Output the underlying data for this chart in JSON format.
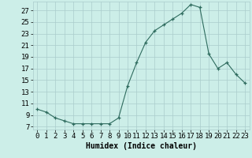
{
  "x": [
    0,
    1,
    2,
    3,
    4,
    5,
    6,
    7,
    8,
    9,
    10,
    11,
    12,
    13,
    14,
    15,
    16,
    17,
    18,
    19,
    20,
    21,
    22,
    23
  ],
  "y": [
    10,
    9.5,
    8.5,
    8,
    7.5,
    7.5,
    7.5,
    7.5,
    7.5,
    8.5,
    14,
    18,
    21.5,
    23.5,
    24.5,
    25.5,
    26.5,
    28,
    27.5,
    19.5,
    17,
    18,
    16,
    14.5
  ],
  "xlabel": "Humidex (Indice chaleur)",
  "xlim": [
    -0.5,
    23.5
  ],
  "ylim": [
    6.5,
    28.5
  ],
  "yticks": [
    7,
    9,
    11,
    13,
    15,
    17,
    19,
    21,
    23,
    25,
    27
  ],
  "xticks": [
    0,
    1,
    2,
    3,
    4,
    5,
    6,
    7,
    8,
    9,
    10,
    11,
    12,
    13,
    14,
    15,
    16,
    17,
    18,
    19,
    20,
    21,
    22,
    23
  ],
  "line_color": "#2e6b5e",
  "bg_color": "#cceee8",
  "grid_color": "#aacccc",
  "xlabel_fontsize": 7,
  "tick_fontsize": 6.5
}
